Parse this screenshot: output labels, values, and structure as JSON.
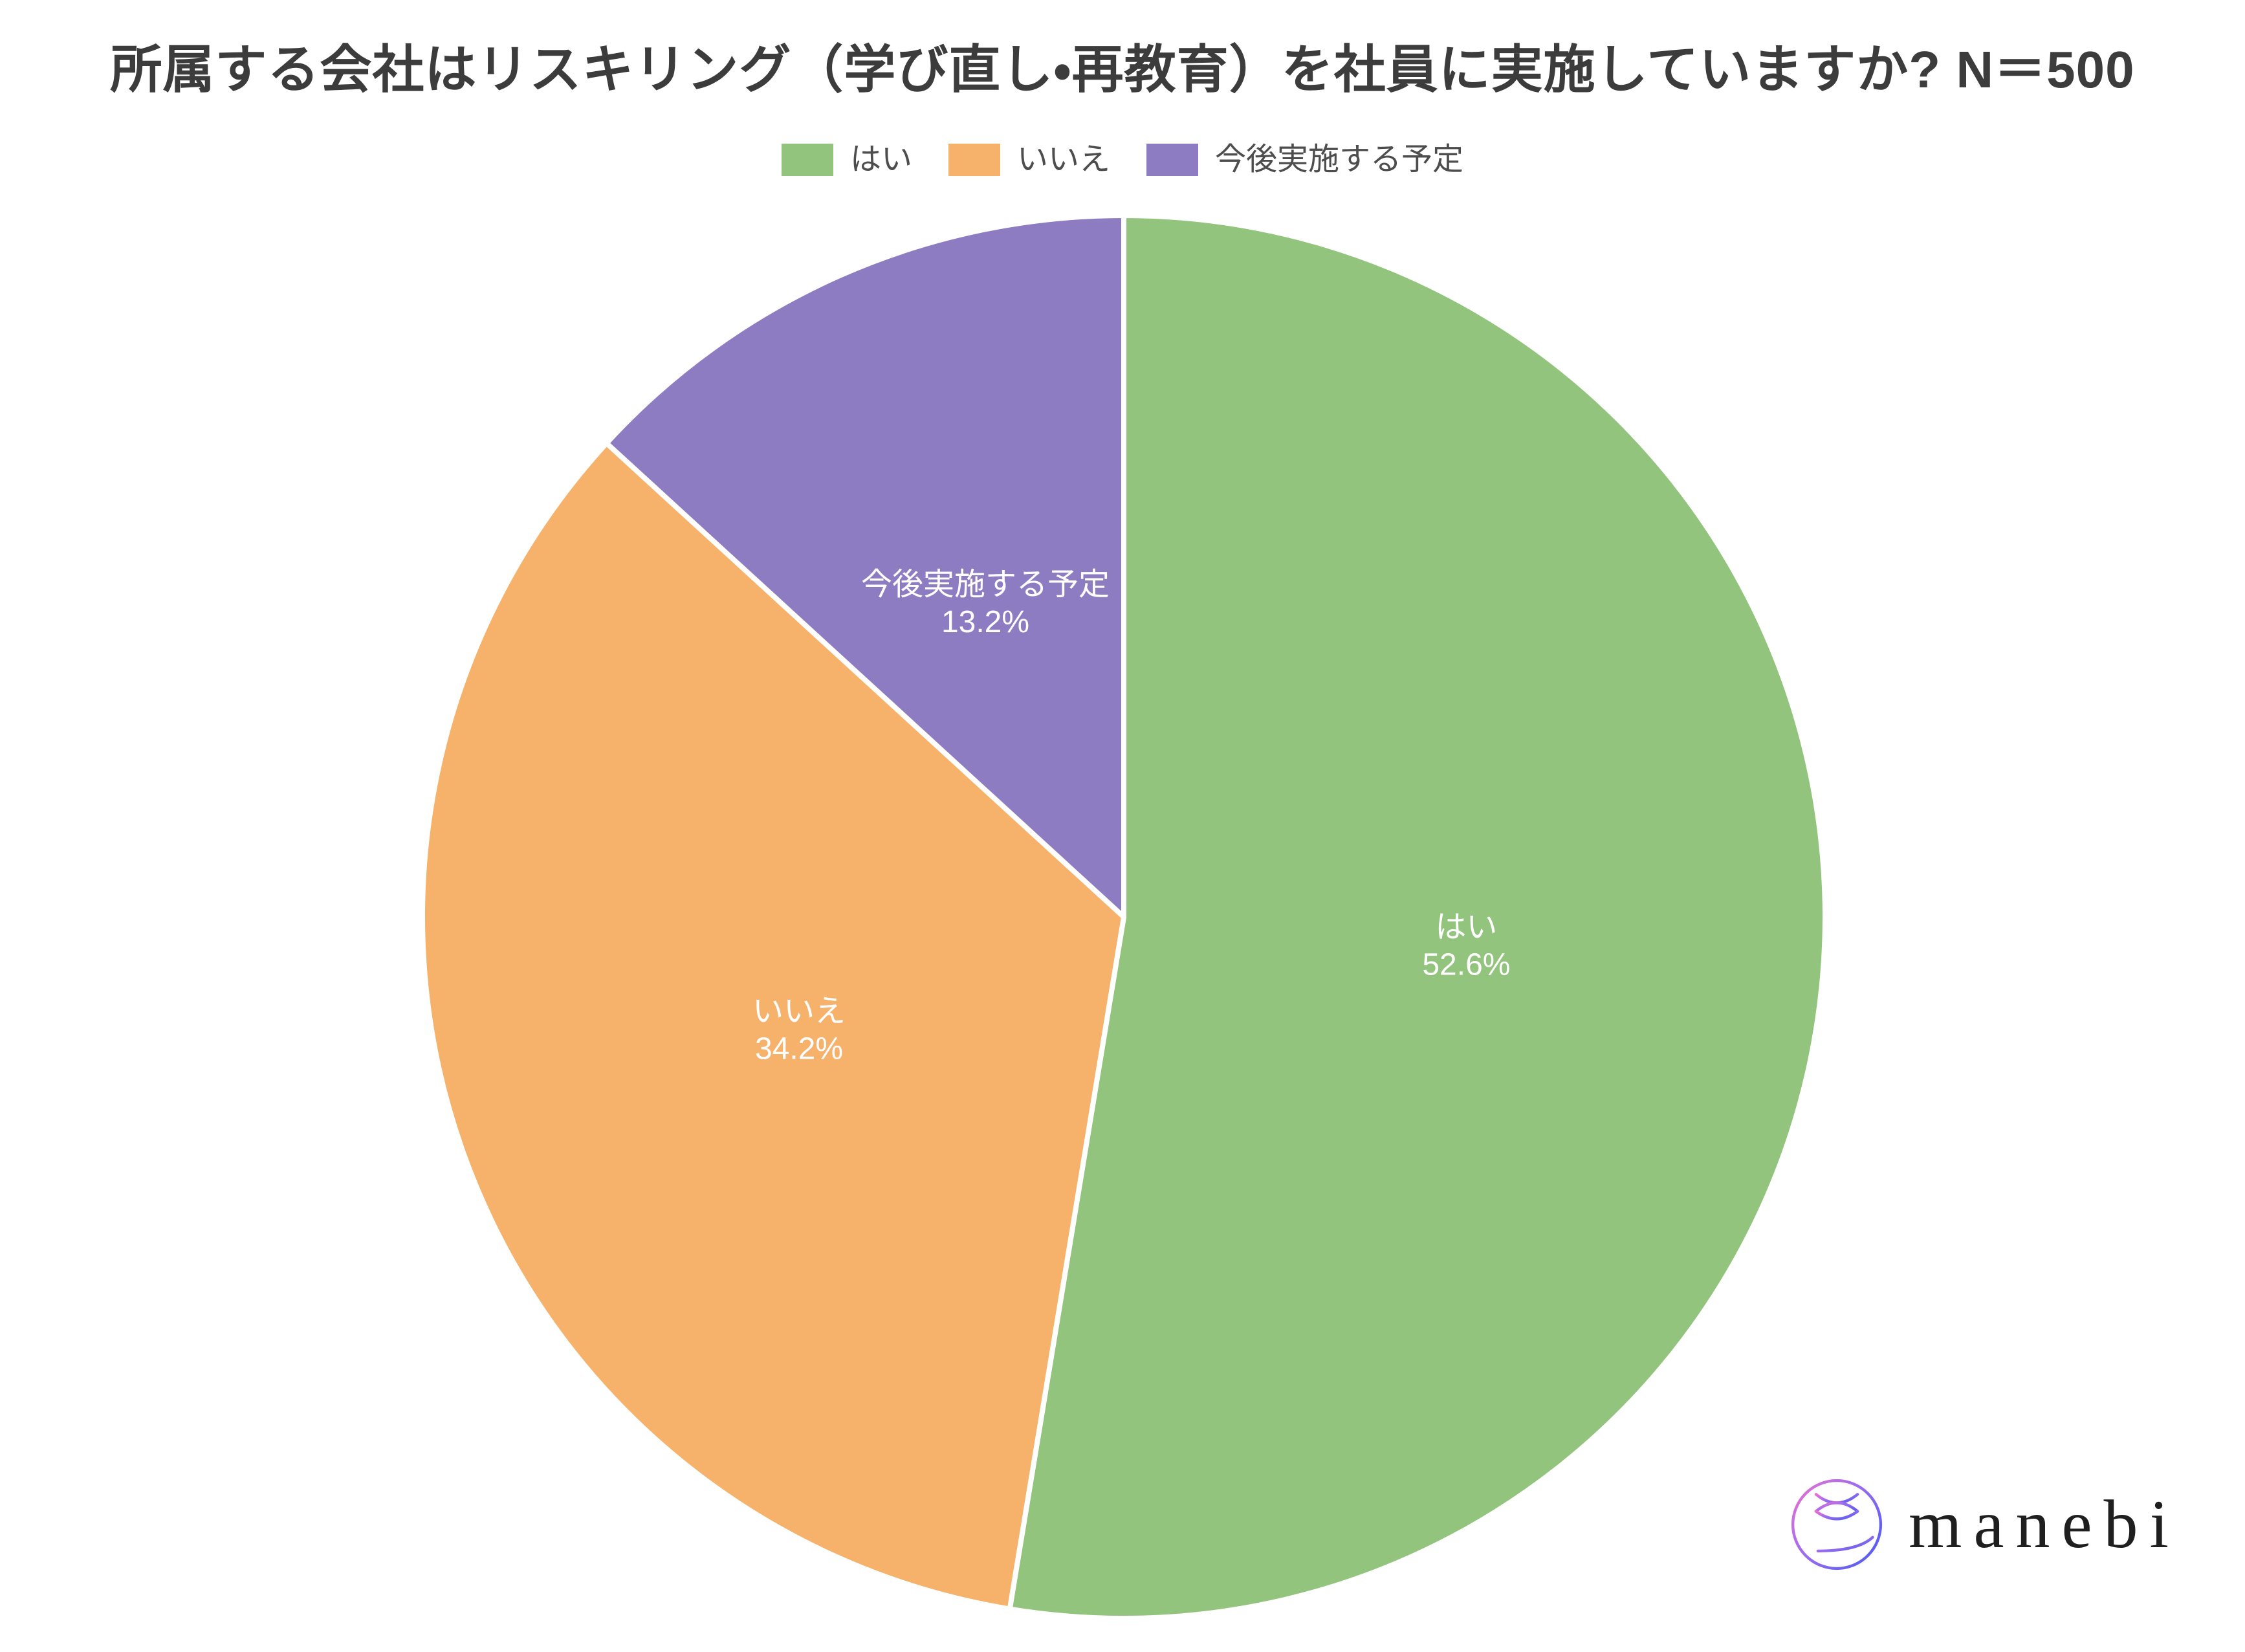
{
  "title": "所属する会社はリスキリング（学び直し・再教育）を社員に実施していますか? N＝500",
  "legend": {
    "items": [
      {
        "label": "はい",
        "color": "#93c47d"
      },
      {
        "label": "いいえ",
        "color": "#f6b26b"
      },
      {
        "label": "今後実施する予定",
        "color": "#8e7cc3"
      }
    ]
  },
  "chart_data": {
    "type": "pie",
    "title": "所属する会社はリスキリング（学び直し・再教育）を社員に実施していますか? N＝500",
    "sample_size_label": "N＝500",
    "categories": [
      "はい",
      "いいえ",
      "今後実施する予定"
    ],
    "values": [
      52.6,
      34.2,
      13.2
    ],
    "unit": "%",
    "colors": [
      "#93c47d",
      "#f6b26b",
      "#8e7cc3"
    ],
    "slice_labels": [
      "はい\n52.6%",
      "いいえ\n34.2%",
      "今後実施する予定\n13.2%"
    ],
    "start_angle_deg": 0,
    "direction": "clockwise",
    "legend_position": "top",
    "slice_divider_color": "#ffffff",
    "slice_label_color": "#ffffff"
  },
  "logo": {
    "text": "manebi"
  },
  "colors": {
    "background": "#ffffff",
    "title_text": "#3c3c3c",
    "legend_text": "#4d4d4d"
  }
}
